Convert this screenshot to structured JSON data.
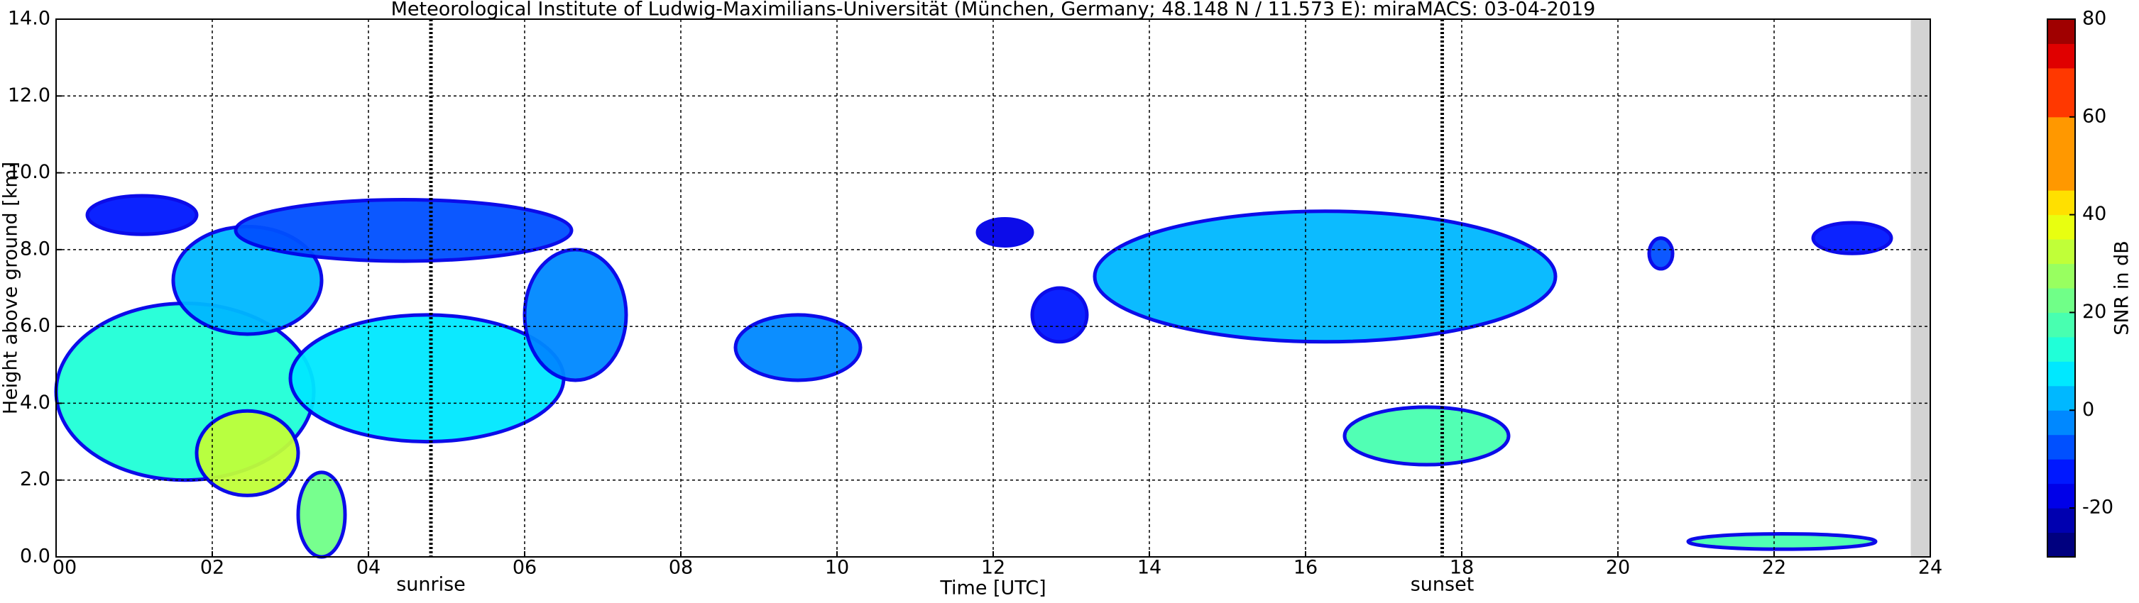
{
  "chart_data": {
    "type": "heatmap",
    "title": "Meteorological Institute of Ludwig-Maximilians-Universität (München, Germany; 48.148 N / 11.573 E):    miraMACS: 03-04-2019",
    "xlabel": "Time [UTC]",
    "ylabel": "Height above ground [km]",
    "xlim": [
      0,
      24
    ],
    "ylim": [
      0,
      14
    ],
    "xticks": [
      {
        "value": 0,
        "label": "00"
      },
      {
        "value": 2,
        "label": "02"
      },
      {
        "value": 4,
        "label": "04"
      },
      {
        "value": 6,
        "label": "06"
      },
      {
        "value": 8,
        "label": "08"
      },
      {
        "value": 10,
        "label": "10"
      },
      {
        "value": 12,
        "label": "12"
      },
      {
        "value": 14,
        "label": "14"
      },
      {
        "value": 16,
        "label": "16"
      },
      {
        "value": 18,
        "label": "18"
      },
      {
        "value": 20,
        "label": "20"
      },
      {
        "value": 22,
        "label": "22"
      },
      {
        "value": 24,
        "label": "24"
      }
    ],
    "yticks": [
      {
        "value": 0,
        "label": "0.0"
      },
      {
        "value": 2,
        "label": "2.0"
      },
      {
        "value": 4,
        "label": "4.0"
      },
      {
        "value": 6,
        "label": "6.0"
      },
      {
        "value": 8,
        "label": "8.0"
      },
      {
        "value": 10,
        "label": "10.0"
      },
      {
        "value": 12,
        "label": "12.0"
      },
      {
        "value": 14,
        "label": "14.0"
      }
    ],
    "grid": true,
    "annotations": [
      {
        "x": 4.8,
        "text": "sunrise"
      },
      {
        "x": 17.75,
        "text": "sunset"
      }
    ],
    "no_data": [
      23.75,
      24
    ],
    "echoes": [
      {
        "x": [
          0.4,
          1.8
        ],
        "y": [
          8.4,
          9.4
        ],
        "snr": -15
      },
      {
        "x": [
          0,
          3.3
        ],
        "y": [
          2.0,
          6.6
        ],
        "snr": 12
      },
      {
        "x": [
          1.5,
          3.4
        ],
        "y": [
          5.8,
          8.6
        ],
        "snr": 0
      },
      {
        "x": [
          2.3,
          6.6
        ],
        "y": [
          7.7,
          9.3
        ],
        "snr": -10
      },
      {
        "x": [
          3.0,
          6.5
        ],
        "y": [
          3.0,
          6.3
        ],
        "snr": 5
      },
      {
        "x": [
          1.8,
          3.1
        ],
        "y": [
          1.6,
          3.8
        ],
        "snr": 30
      },
      {
        "x": [
          3.1,
          3.7
        ],
        "y": [
          0,
          2.2
        ],
        "snr": 20
      },
      {
        "x": [
          6.0,
          7.3
        ],
        "y": [
          4.6,
          8.0
        ],
        "snr": -5
      },
      {
        "x": [
          8.7,
          10.3
        ],
        "y": [
          4.6,
          6.3
        ],
        "snr": -5
      },
      {
        "x": [
          13.3,
          19.2
        ],
        "y": [
          5.6,
          9.0
        ],
        "snr": 0
      },
      {
        "x": [
          16.5,
          18.6
        ],
        "y": [
          2.4,
          3.9
        ],
        "snr": 15
      },
      {
        "x": [
          20.9,
          23.3
        ],
        "y": [
          0.2,
          0.6
        ],
        "snr": 15
      },
      {
        "x": [
          22.5,
          23.5
        ],
        "y": [
          7.9,
          8.7
        ],
        "snr": -15
      },
      {
        "x": [
          11.8,
          12.5
        ],
        "y": [
          8.1,
          8.8
        ],
        "snr": -20
      },
      {
        "x": [
          12.5,
          13.2
        ],
        "y": [
          5.6,
          7.0
        ],
        "snr": -15
      },
      {
        "x": [
          20.4,
          20.7
        ],
        "y": [
          7.5,
          8.3
        ],
        "snr": -10
      }
    ],
    "colorbar": {
      "label": "SNR in dB",
      "lim": [
        -30,
        80
      ],
      "ticks": [
        -20,
        0,
        20,
        40,
        60,
        80
      ],
      "colors": [
        "#00007f",
        "#0000b0",
        "#0000e8",
        "#0018ff",
        "#0050ff",
        "#0088ff",
        "#00b8ff",
        "#00e8ff",
        "#20ffd8",
        "#48ffb0",
        "#70ff88",
        "#98ff60",
        "#c0ff38",
        "#e8ff10",
        "#ffe000",
        "#ff9800",
        "#ff9800",
        "#ff9800",
        "#ff3800",
        "#ff3800",
        "#e00000",
        "#a00000"
      ]
    }
  }
}
